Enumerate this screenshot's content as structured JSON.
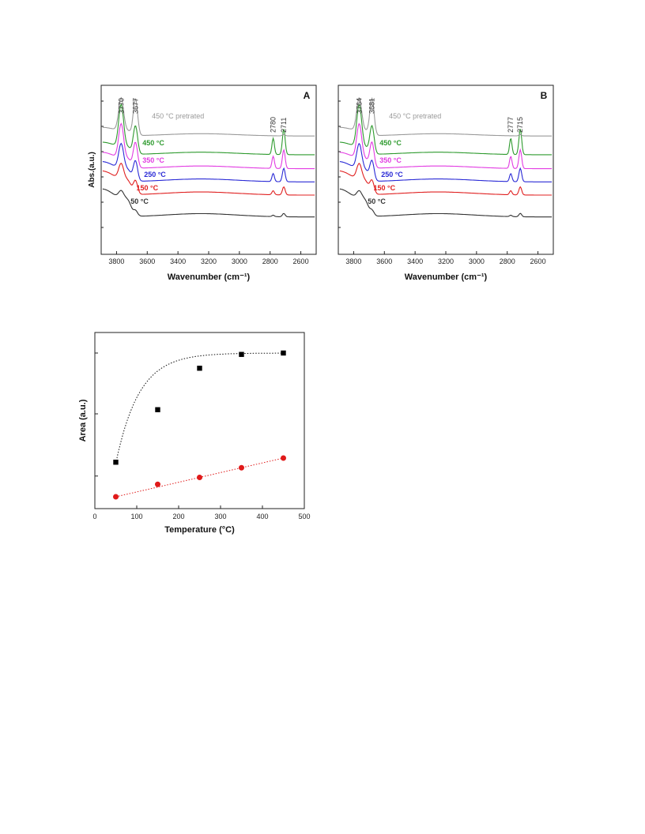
{
  "chart_data": [
    {
      "type": "line",
      "panel_label": "A",
      "xlabel": "Wavenumber (cm⁻¹)",
      "ylabel": "Abs.(a.u.)",
      "xlim": [
        3900,
        2500
      ],
      "x_reversed": true,
      "x_ticks": [
        3800,
        3600,
        3400,
        3200,
        3000,
        2800,
        2600
      ],
      "grid": false,
      "peak_labels": [
        "3770",
        "3677",
        "2780",
        "2711"
      ],
      "peak_positions": [
        3770,
        3677,
        2780,
        2711
      ],
      "series": [
        {
          "name": "450 °C pretrated",
          "color": "#9a9a9a",
          "offset": 5
        },
        {
          "name": "450 °C",
          "color": "#2e9a2e",
          "offset": 4
        },
        {
          "name": "350 °C",
          "color": "#e23be2",
          "offset": 3
        },
        {
          "name": "250 °C",
          "color": "#2a2ad6",
          "offset": 2
        },
        {
          "name": "150 °C",
          "color": "#e02020",
          "offset": 1
        },
        {
          "name": "50 °C",
          "color": "#333333",
          "offset": 0
        }
      ]
    },
    {
      "type": "line",
      "panel_label": "B",
      "xlabel": "Wavenumber (cm⁻¹)",
      "ylabel": "",
      "xlim": [
        3900,
        2500
      ],
      "x_reversed": true,
      "x_ticks": [
        3800,
        3600,
        3400,
        3200,
        3000,
        2800,
        2600
      ],
      "grid": false,
      "peak_labels": [
        "3764",
        "3681",
        "2777",
        "2715"
      ],
      "peak_positions": [
        3764,
        3681,
        2777,
        2715
      ],
      "series": [
        {
          "name": "450 °C pretrated",
          "color": "#9a9a9a",
          "offset": 5
        },
        {
          "name": "450 °C",
          "color": "#2e9a2e",
          "offset": 4
        },
        {
          "name": "350 °C",
          "color": "#e23be2",
          "offset": 3
        },
        {
          "name": "250 °C",
          "color": "#2a2ad6",
          "offset": 2
        },
        {
          "name": "150 °C",
          "color": "#e02020",
          "offset": 1
        },
        {
          "name": "50 °C",
          "color": "#333333",
          "offset": 0
        }
      ]
    },
    {
      "type": "scatter",
      "xlabel": "Temperature (°C)",
      "ylabel": "Area (a.u.)",
      "xlim": [
        0,
        500
      ],
      "x_ticks": [
        0,
        100,
        200,
        300,
        400,
        500
      ],
      "ylim": [
        0,
        1
      ],
      "grid": false,
      "series": [
        {
          "marker": "square",
          "color": "#000000",
          "x": [
            50,
            150,
            250,
            350,
            450
          ],
          "y": [
            0.25,
            0.63,
            0.93,
            1.03,
            1.04
          ]
        },
        {
          "marker": "circle",
          "color": "#e01a1a",
          "x": [
            50,
            150,
            250,
            350,
            450
          ],
          "y": [
            0.0,
            0.09,
            0.14,
            0.21,
            0.28
          ]
        }
      ]
    }
  ]
}
